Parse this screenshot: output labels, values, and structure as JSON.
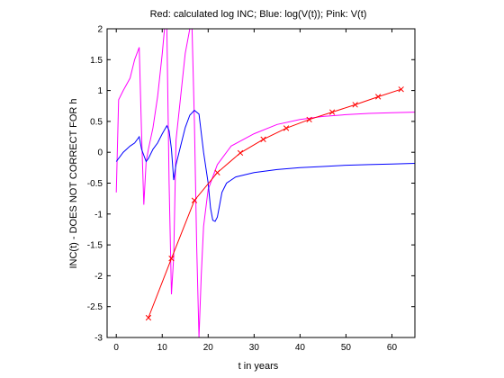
{
  "chart_data": {
    "type": "line",
    "title": "Red: calculated log INC; Blue: log(V(t)); Pink: V(t)",
    "xlabel": "t in years",
    "ylabel": "INC(t) - DOES NOT CORRECT FOR h",
    "xlim": [
      -2,
      65
    ],
    "ylim": [
      -3,
      2
    ],
    "xticks": [
      0,
      10,
      20,
      30,
      40,
      50,
      60
    ],
    "yticks": [
      -3,
      -2.5,
      -2,
      -1.5,
      -1,
      -0.5,
      0,
      0.5,
      1,
      1.5,
      2
    ],
    "grid": false,
    "legend": "none",
    "series": [
      {
        "color": "#ff00ff",
        "marker": "none",
        "x": [
          0,
          0.5,
          1.5,
          3,
          4,
          5,
          5.5,
          6,
          6.5,
          7,
          8,
          9,
          10,
          10.5,
          11,
          11.5,
          12,
          12.5,
          13,
          14,
          15,
          16,
          16.5,
          17,
          17.5,
          18,
          18.5,
          19,
          20,
          22,
          25,
          30,
          35,
          40,
          45,
          50,
          55,
          60,
          65
        ],
        "y": [
          -0.65,
          0.85,
          1.0,
          1.2,
          1.5,
          1.7,
          0.3,
          -0.85,
          -0.15,
          0.05,
          0.4,
          0.9,
          1.6,
          2.0,
          2.0,
          -0.5,
          -2.3,
          -1.7,
          0.2,
          0.9,
          1.6,
          2.0,
          2.0,
          0.5,
          -1.5,
          -3.0,
          -2.0,
          -1.2,
          -0.6,
          -0.2,
          0.1,
          0.3,
          0.45,
          0.53,
          0.58,
          0.61,
          0.63,
          0.64,
          0.65
        ]
      },
      {
        "color": "#0000ff",
        "marker": "none",
        "x": [
          0,
          0.5,
          1.5,
          3,
          4,
          5,
          5.5,
          6,
          6.5,
          7,
          8,
          9,
          10,
          11,
          11.5,
          12,
          12.5,
          13,
          14,
          15,
          16,
          17,
          18,
          19,
          20,
          20.5,
          21,
          21.5,
          22,
          22.5,
          23,
          24,
          26,
          30,
          35,
          40,
          45,
          50,
          55,
          60,
          65
        ],
        "y": [
          -0.15,
          -0.1,
          0.0,
          0.1,
          0.15,
          0.25,
          0.05,
          -0.05,
          -0.15,
          -0.1,
          0.05,
          0.15,
          0.3,
          0.43,
          0.35,
          0.05,
          -0.45,
          -0.2,
          0.1,
          0.4,
          0.6,
          0.68,
          0.62,
          0.0,
          -0.5,
          -0.9,
          -1.1,
          -1.12,
          -1.05,
          -0.85,
          -0.65,
          -0.5,
          -0.4,
          -0.33,
          -0.28,
          -0.25,
          -0.23,
          -0.21,
          -0.2,
          -0.19,
          -0.18
        ]
      },
      {
        "color": "#ff0000",
        "marker": "x",
        "x": [
          7,
          12,
          17,
          22,
          27,
          32,
          37,
          42,
          47,
          52,
          57,
          62
        ],
        "y": [
          -2.68,
          -1.72,
          -0.78,
          -0.33,
          -0.01,
          0.21,
          0.39,
          0.53,
          0.65,
          0.77,
          0.9,
          1.02
        ]
      }
    ]
  }
}
